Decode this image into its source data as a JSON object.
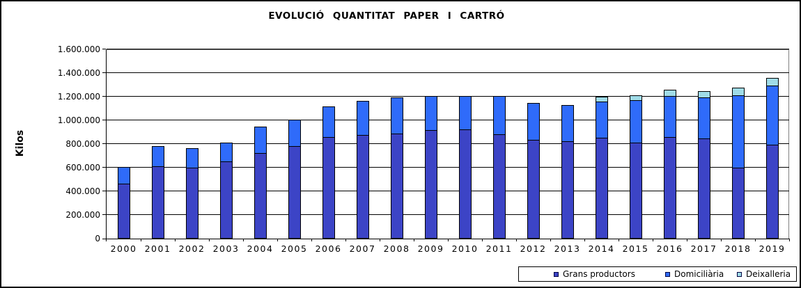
{
  "window": {
    "background_color": "#ffffff",
    "border_color": "#000000"
  },
  "chart_data": {
    "type": "bar",
    "stacked": true,
    "title": "EVOLUCIÓ  QUANTITAT  PAPER  I  CARTRÓ",
    "ylabel": "Kilos",
    "xlabel": "",
    "categories": [
      "2000",
      "2001",
      "2002",
      "2003",
      "2004",
      "2005",
      "2006",
      "2007",
      "2008",
      "2009",
      "2010",
      "2011",
      "2012",
      "2013",
      "2014",
      "2015",
      "2016",
      "2017",
      "2018",
      "2019"
    ],
    "series": [
      {
        "name": "Grans productors",
        "color": "#3c44c6",
        "values": [
          460000,
          605000,
          595000,
          645000,
          715000,
          775000,
          850000,
          870000,
          880000,
          910000,
          915000,
          875000,
          830000,
          815000,
          845000,
          805000,
          855000,
          840000,
          595000,
          790000
        ]
      },
      {
        "name": "Domiciliària",
        "color": "#2f6bfa",
        "values": [
          140000,
          170000,
          165000,
          160000,
          225000,
          225000,
          260000,
          290000,
          305000,
          290000,
          285000,
          325000,
          310000,
          305000,
          310000,
          360000,
          345000,
          350000,
          610000,
          500000
        ]
      },
      {
        "name": "Deixalleria",
        "color": "#a0dce8",
        "values": [
          0,
          0,
          0,
          0,
          0,
          0,
          0,
          0,
          0,
          0,
          0,
          0,
          0,
          0,
          40000,
          40000,
          50000,
          55000,
          65000,
          65000
        ]
      }
    ],
    "ylim": [
      0,
      1600000
    ],
    "ytick_step": 200000,
    "ytick_labels": [
      "0",
      "200.000",
      "400.000",
      "600.000",
      "800.000",
      "1.000.000",
      "1.200.000",
      "1.400.000",
      "1.600.000"
    ],
    "grid": true,
    "legend_position": "bottom-right"
  },
  "legend": {
    "items": [
      {
        "label": "Grans productors"
      },
      {
        "label": "Domiciliària"
      },
      {
        "label": "Deixalleria"
      }
    ]
  }
}
